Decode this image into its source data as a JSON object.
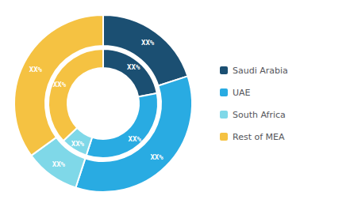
{
  "chart_data": {
    "type": "pie",
    "categories": [
      "Saudi Arabia",
      "UAE",
      "South Africa",
      "Rest of MEA"
    ],
    "colors": [
      "#1b4f72",
      "#29abe2",
      "#7fd8e8",
      "#f5c242"
    ],
    "series": [
      {
        "values": [
          20,
          35,
          10,
          35
        ],
        "value_labels": [
          "XX%",
          "XX%",
          "XX%",
          "XX%"
        ]
      },
      {
        "values": [
          22,
          33,
          8,
          37
        ],
        "value_labels": [
          "XX%",
          "XX%",
          "XX%",
          "XX%"
        ]
      }
    ],
    "data_labels": true,
    "legend": "right"
  }
}
